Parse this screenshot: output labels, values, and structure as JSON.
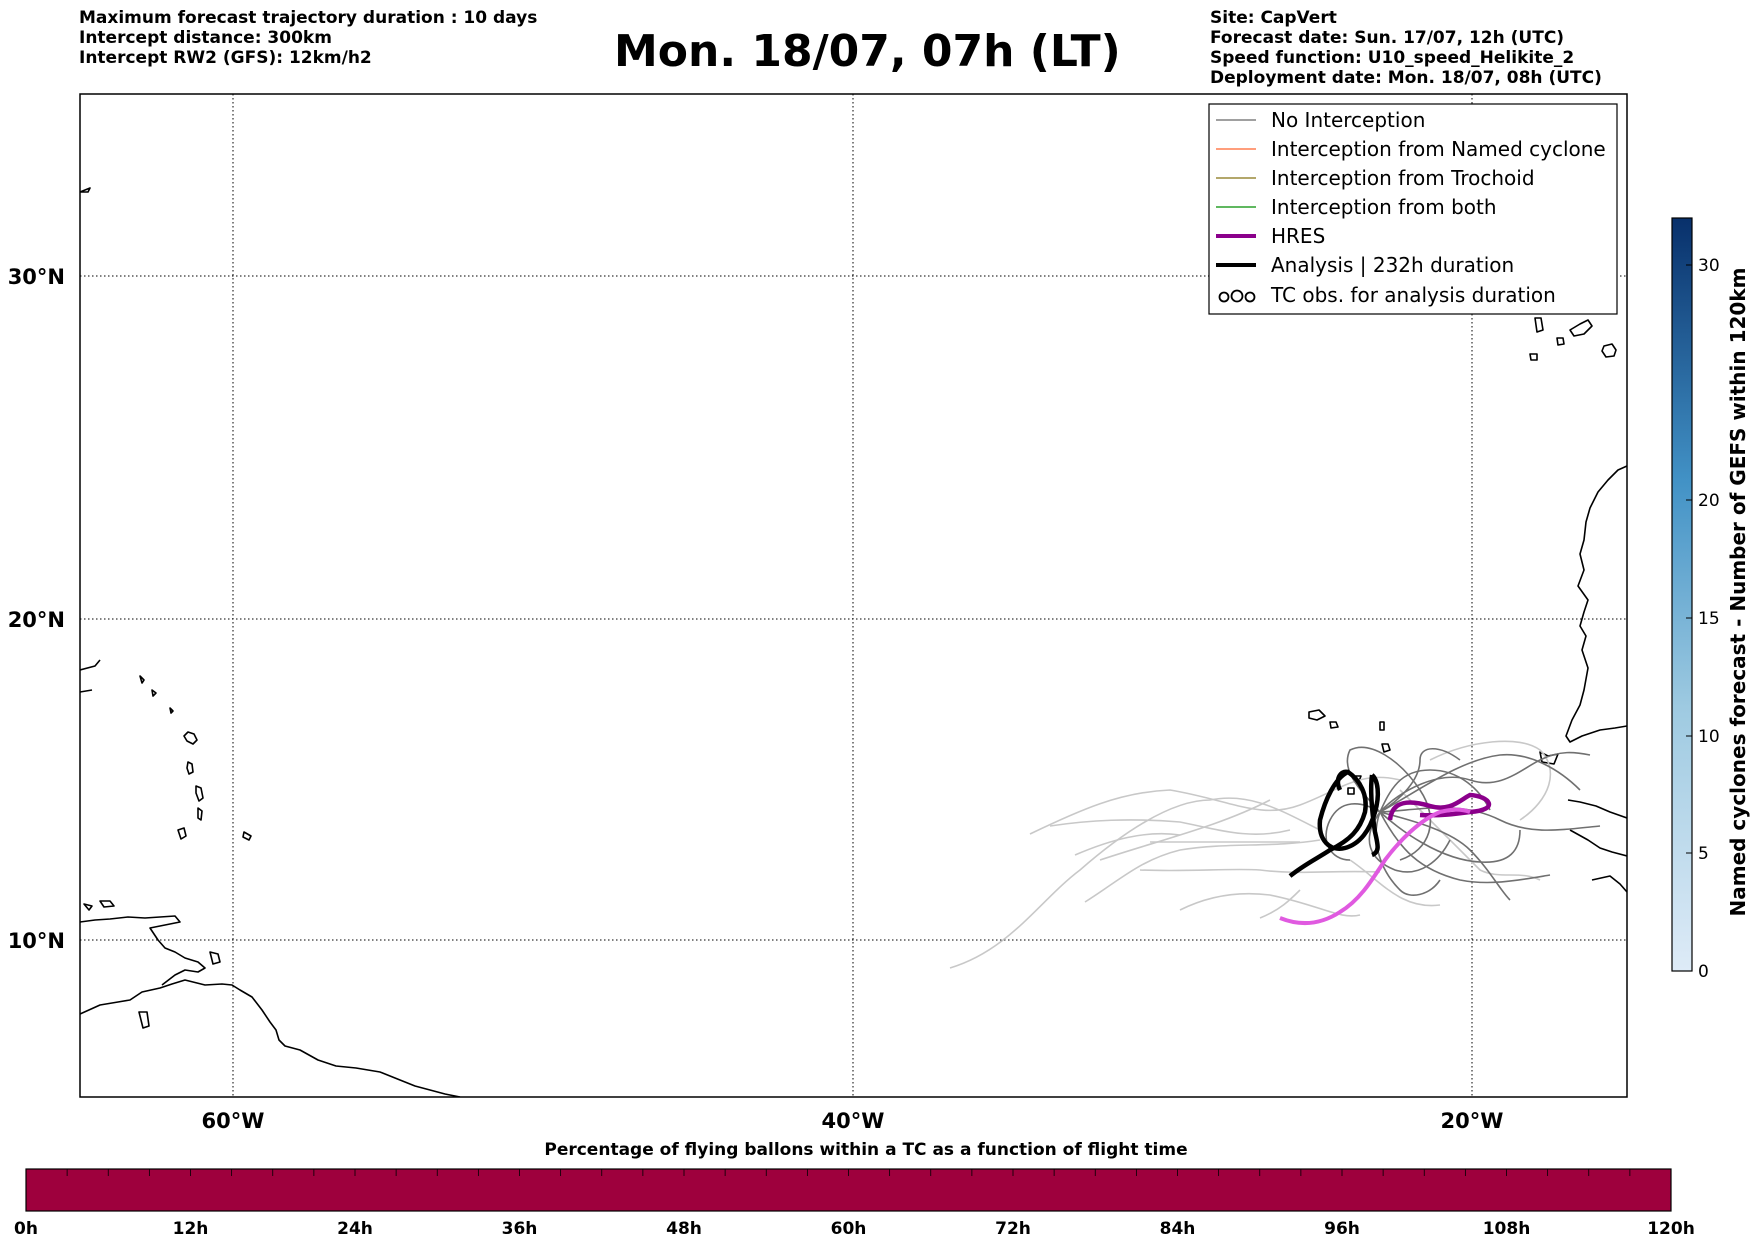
{
  "header_left": {
    "line1": "Maximum forecast trajectory duration : 10 days",
    "line2": "Intercept distance: 300km",
    "line3": "Intercept RW2 (GFS):  12km/h2"
  },
  "title": "Mon. 18/07, 07h (LT)",
  "header_right": {
    "line1": "Site: CapVert",
    "line2": "Forecast date: Sun. 17/07, 12h (UTC)",
    "line3": "Speed function: U10_speed_Helikite_2",
    "line4": "Deployment date: Mon. 18/07, 08h (UTC)"
  },
  "map": {
    "lon_ticks": [
      "60°W",
      "40°W",
      "20°W"
    ],
    "lat_ticks": [
      "30°N",
      "20°N",
      "10°N"
    ],
    "lon_range": [
      -65,
      -15
    ],
    "lat_range": [
      5.4,
      34.7
    ]
  },
  "legend": {
    "items": [
      {
        "label": "No Interception",
        "color": "#808080"
      },
      {
        "label": "Interception from Named cyclone",
        "color": "#ff7f50"
      },
      {
        "label": "Interception from Trochoid",
        "color": "#9a8a3a"
      },
      {
        "label": "Interception from both",
        "color": "#2ca02c"
      },
      {
        "label": "HRES",
        "color": "#8b008b"
      },
      {
        "label": "Analysis | 232h duration",
        "color": "#000000"
      },
      {
        "label": "TC obs. for analysis duration",
        "symbol": "ooo"
      }
    ]
  },
  "colorbar_right": {
    "label": "Named cyclones forecast - Number of GEFS within 120km",
    "ticks": [
      "30",
      "20",
      "15",
      "10",
      "5",
      "0"
    ],
    "range": [
      0,
      32
    ]
  },
  "colorbar_bottom": {
    "title": "Percentage of flying ballons within a TC as a function of flight time",
    "ticks": [
      "0h",
      "12h",
      "24h",
      "36h",
      "48h",
      "60h",
      "72h",
      "84h",
      "96h",
      "108h",
      "120h"
    ],
    "fill_color": "#9e003d"
  }
}
